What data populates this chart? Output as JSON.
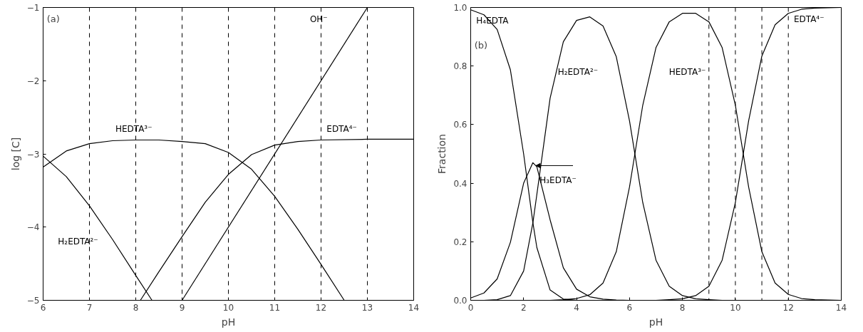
{
  "chart_data": [
    {
      "type": "line",
      "xlabel": "pH",
      "ylabel": "log [C]",
      "xlim": [
        6,
        14
      ],
      "ylim": [
        -5,
        -1
      ],
      "xticks": [
        6,
        7,
        8,
        9,
        10,
        11,
        12,
        13,
        14
      ],
      "yticks": [
        -5,
        -4,
        -3,
        -2,
        -1
      ],
      "grid": false,
      "line_style": "solid",
      "series": [
        {
          "name": "H₂EDTA²⁻",
          "color": "#000000",
          "x": [
            6,
            6.5,
            7,
            7.5,
            8,
            8.35
          ],
          "values": [
            -3.03,
            -3.31,
            -3.71,
            -4.17,
            -4.66,
            -5.0
          ]
        },
        {
          "name": "HEDTA³⁻",
          "color": "#000000",
          "x": [
            6,
            6.5,
            7,
            7.5,
            8,
            8.5,
            9,
            9.5,
            10,
            10.5,
            11,
            11.5,
            12,
            12.5
          ],
          "values": [
            -3.18,
            -2.96,
            -2.86,
            -2.82,
            -2.81,
            -2.81,
            -2.83,
            -2.86,
            -2.98,
            -3.21,
            -3.58,
            -4.03,
            -4.51,
            -5.0
          ]
        },
        {
          "name": "EDTA⁴⁻",
          "color": "#000000",
          "x": [
            8.1,
            8.5,
            9,
            9.5,
            10,
            10.5,
            11,
            11.5,
            12,
            13,
            14
          ],
          "values": [
            -5.0,
            -4.61,
            -4.13,
            -3.66,
            -3.28,
            -3.01,
            -2.88,
            -2.83,
            -2.81,
            -2.8,
            -2.8
          ]
        },
        {
          "name": "OH⁻",
          "color": "#000000",
          "x": [
            9,
            13
          ],
          "values": [
            -5,
            -1
          ]
        }
      ],
      "ref_lines": [
        {
          "axis": "x",
          "value": 7,
          "line_style": "dashed"
        },
        {
          "axis": "x",
          "value": 8,
          "line_style": "dashed"
        },
        {
          "axis": "x",
          "value": 9,
          "line_style": "dashed"
        },
        {
          "axis": "x",
          "value": 10,
          "line_style": "dashed"
        },
        {
          "axis": "x",
          "value": 11,
          "line_style": "dashed"
        },
        {
          "axis": "x",
          "value": 12,
          "line_style": "dashed"
        },
        {
          "axis": "x",
          "value": 13,
          "line_style": "dashed"
        }
      ],
      "annotations": [
        "(a)"
      ]
    },
    {
      "type": "line",
      "xlabel": "pH",
      "ylabel": "Fraction",
      "xlim": [
        0,
        14
      ],
      "ylim": [
        0,
        1.0
      ],
      "xticks": [
        0,
        2,
        4,
        6,
        8,
        10,
        12,
        14
      ],
      "yticks": [
        {
          "value": 0,
          "label": "0.0"
        },
        0.2,
        0.4,
        0.6,
        0.8,
        {
          "value": 1,
          "label": "1.0"
        }
      ],
      "grid": false,
      "line_style": "solid",
      "x": [
        0,
        0.5,
        1,
        1.5,
        2,
        2.35,
        2.5,
        3,
        3.5,
        4,
        4.5,
        5,
        5.5,
        6,
        6.5,
        7,
        7.5,
        8,
        8.5,
        9,
        9.5,
        10,
        10.5,
        11,
        11.5,
        12,
        12.5,
        13,
        13.5,
        14
      ],
      "series": [
        {
          "name": "H₄EDTA",
          "color": "#000000",
          "values": [
            0.992,
            0.975,
            0.925,
            0.787,
            0.5,
            0.265,
            0.18,
            0.035,
            0.004,
            0,
            0,
            0,
            0,
            0,
            0,
            0,
            0,
            0,
            0,
            0,
            0,
            0,
            0,
            0,
            0,
            0,
            0,
            0,
            0,
            0
          ]
        },
        {
          "name": "H₃EDTA⁻",
          "color": "#000000",
          "values": [
            0.008,
            0.025,
            0.073,
            0.198,
            0.4,
            0.47,
            0.456,
            0.275,
            0.111,
            0.038,
            0.012,
            0.004,
            0.001,
            0,
            0,
            0,
            0,
            0,
            0,
            0,
            0,
            0,
            0,
            0,
            0,
            0,
            0,
            0,
            0,
            0
          ]
        },
        {
          "name": "H₂EDTA²⁻",
          "color": "#000000",
          "values": [
            0,
            0,
            0.002,
            0.016,
            0.1,
            0.265,
            0.362,
            0.69,
            0.883,
            0.956,
            0.968,
            0.937,
            0.832,
            0.613,
            0.334,
            0.137,
            0.048,
            0.016,
            0.005,
            0.002,
            0,
            0,
            0,
            0,
            0,
            0,
            0,
            0,
            0,
            0
          ]
        },
        {
          "name": "HEDTA³⁻",
          "color": "#000000",
          "values": [
            0,
            0,
            0,
            0,
            0,
            0,
            0,
            0,
            0.002,
            0.006,
            0.019,
            0.059,
            0.166,
            0.387,
            0.666,
            0.863,
            0.951,
            0.98,
            0.98,
            0.951,
            0.863,
            0.666,
            0.387,
            0.166,
            0.059,
            0.02,
            0.006,
            0.002,
            0.001,
            0
          ]
        },
        {
          "name": "EDTA⁴⁻",
          "color": "#000000",
          "values": [
            0,
            0,
            0,
            0,
            0,
            0,
            0,
            0,
            0,
            0,
            0,
            0,
            0,
            0,
            0,
            0,
            0.002,
            0.005,
            0.016,
            0.048,
            0.137,
            0.334,
            0.613,
            0.834,
            0.941,
            0.98,
            0.994,
            0.998,
            0.999,
            1.0
          ]
        }
      ],
      "ref_lines": [
        {
          "axis": "x",
          "value": 9,
          "line_style": "dashed"
        },
        {
          "axis": "x",
          "value": 10,
          "line_style": "dashed"
        },
        {
          "axis": "x",
          "value": 11,
          "line_style": "dashed"
        },
        {
          "axis": "x",
          "value": 12,
          "line_style": "dashed"
        }
      ],
      "annotations": [
        "(b)"
      ]
    }
  ]
}
